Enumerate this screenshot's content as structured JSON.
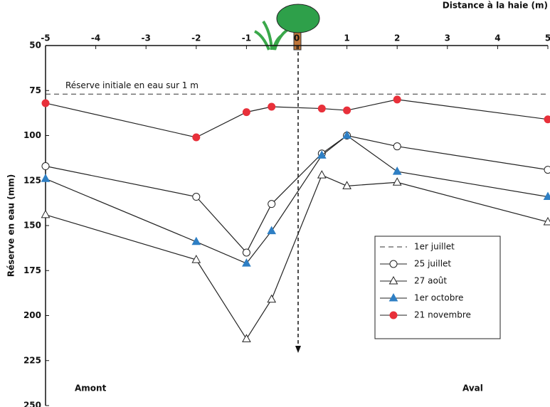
{
  "chart_data": {
    "type": "line",
    "x_label": "Distance à la haie (m)",
    "y_label": "Réserve en eau (mm)",
    "x": [
      -5,
      -2,
      -1,
      -0.5,
      0.5,
      1,
      2,
      5
    ],
    "xlim": [
      -5,
      5
    ],
    "xticks": [
      -5,
      -4,
      -3,
      -2,
      -1,
      0,
      1,
      2,
      3,
      4,
      5
    ],
    "x_axis_position": "top",
    "ylim": [
      50,
      250
    ],
    "yticks": [
      50,
      75,
      100,
      125,
      150,
      175,
      200,
      225,
      250
    ],
    "y_inverted": true,
    "reference_line": {
      "name": "1er juillet",
      "value": 77,
      "label": "Réserve initiale en eau sur 1 m",
      "color": "#333333"
    },
    "series": [
      {
        "name": "25 juillet",
        "color": "#222222",
        "marker": "circle",
        "marker_fill": "#ffffff",
        "values": [
          117,
          134,
          165,
          138,
          110,
          100,
          106,
          119
        ]
      },
      {
        "name": "27 août",
        "color": "#222222",
        "marker": "triangle",
        "marker_fill": "#ffffff",
        "values": [
          144,
          169,
          213,
          191,
          122,
          128,
          126,
          148
        ]
      },
      {
        "name": "1er octobre",
        "color": "#222222",
        "marker": "triangle",
        "marker_fill": "#2e7fc4",
        "values": [
          124,
          159,
          171,
          153,
          111,
          100,
          120,
          134
        ]
      },
      {
        "name": "21 novembre",
        "color": "#222222",
        "marker": "circle",
        "marker_fill": "#e8303a",
        "values": [
          82,
          101,
          87,
          84,
          85,
          86,
          80,
          91
        ]
      }
    ],
    "annotations": [
      "Amont",
      "Aval"
    ]
  }
}
